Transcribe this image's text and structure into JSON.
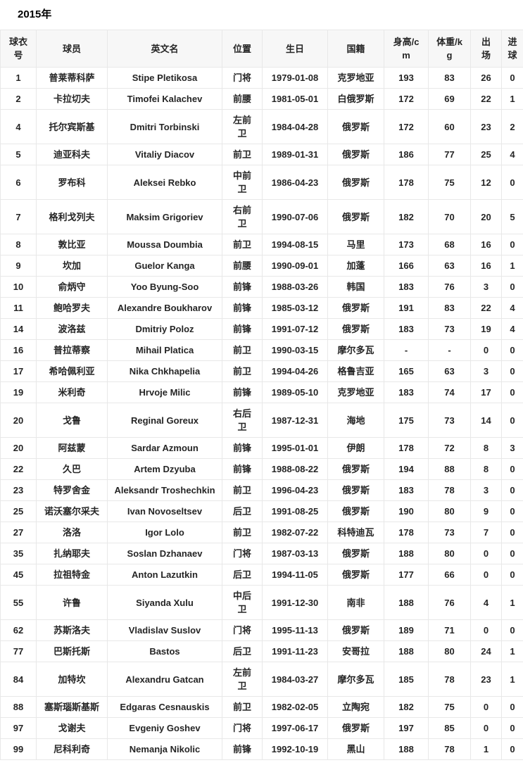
{
  "title": "2015年",
  "table": {
    "columns": [
      {
        "key": "number",
        "label": "球衣\n号"
      },
      {
        "key": "player",
        "label": "球员"
      },
      {
        "key": "en_name",
        "label": "英文名"
      },
      {
        "key": "position",
        "label": "位置"
      },
      {
        "key": "birthday",
        "label": "生日"
      },
      {
        "key": "nationality",
        "label": "国籍"
      },
      {
        "key": "height",
        "label": "身高/c\nm"
      },
      {
        "key": "weight",
        "label": "体重/k\ng"
      },
      {
        "key": "appearances",
        "label": "出\n场"
      },
      {
        "key": "goals",
        "label": "进\n球"
      }
    ],
    "rows": [
      [
        "1",
        "普莱蒂科萨",
        "Stipe Pletikosa",
        "门将",
        "1979-01-08",
        "克罗地亚",
        "193",
        "83",
        "26",
        "0"
      ],
      [
        "2",
        "卡拉切夫",
        "Timofei Kalachev",
        "前腰",
        "1981-05-01",
        "白俄罗斯",
        "172",
        "69",
        "22",
        "1"
      ],
      [
        "4",
        "托尔宾斯基",
        "Dmitri Torbinski",
        "左前\n卫",
        "1984-04-28",
        "俄罗斯",
        "172",
        "60",
        "23",
        "2"
      ],
      [
        "5",
        "迪亚科夫",
        "Vitaliy Diacov",
        "前卫",
        "1989-01-31",
        "俄罗斯",
        "186",
        "77",
        "25",
        "4"
      ],
      [
        "6",
        "罗布科",
        "Aleksei Rebko",
        "中前\n卫",
        "1986-04-23",
        "俄罗斯",
        "178",
        "75",
        "12",
        "0"
      ],
      [
        "7",
        "格利戈列夫",
        "Maksim Grigoriev",
        "右前\n卫",
        "1990-07-06",
        "俄罗斯",
        "182",
        "70",
        "20",
        "5"
      ],
      [
        "8",
        "敦比亚",
        "Moussa Doumbia",
        "前卫",
        "1994-08-15",
        "马里",
        "173",
        "68",
        "16",
        "0"
      ],
      [
        "9",
        "坎加",
        "Guelor Kanga",
        "前腰",
        "1990-09-01",
        "加蓬",
        "166",
        "63",
        "16",
        "1"
      ],
      [
        "10",
        "俞炳守",
        "Yoo Byung-Soo",
        "前锋",
        "1988-03-26",
        "韩国",
        "183",
        "76",
        "3",
        "0"
      ],
      [
        "11",
        "鲍哈罗夫",
        "Alexandre Boukharov",
        "前锋",
        "1985-03-12",
        "俄罗斯",
        "191",
        "83",
        "22",
        "4"
      ],
      [
        "14",
        "波洛兹",
        "Dmitriy Poloz",
        "前锋",
        "1991-07-12",
        "俄罗斯",
        "183",
        "73",
        "19",
        "4"
      ],
      [
        "16",
        "普拉蒂察",
        "Mihail Platica",
        "前卫",
        "1990-03-15",
        "摩尔多瓦",
        "-",
        "-",
        "0",
        "0"
      ],
      [
        "17",
        "希哈佩利亚",
        "Nika Chkhapelia",
        "前卫",
        "1994-04-26",
        "格鲁吉亚",
        "165",
        "63",
        "3",
        "0"
      ],
      [
        "19",
        "米利奇",
        "Hrvoje Milic",
        "前锋",
        "1989-05-10",
        "克罗地亚",
        "183",
        "74",
        "17",
        "0"
      ],
      [
        "20",
        "戈鲁",
        "Reginal Goreux",
        "右后\n卫",
        "1987-12-31",
        "海地",
        "175",
        "73",
        "14",
        "0"
      ],
      [
        "20",
        "阿兹蒙",
        "Sardar Azmoun",
        "前锋",
        "1995-01-01",
        "伊朗",
        "178",
        "72",
        "8",
        "3"
      ],
      [
        "22",
        "久巴",
        "Artem Dzyuba",
        "前锋",
        "1988-08-22",
        "俄罗斯",
        "194",
        "88",
        "8",
        "0"
      ],
      [
        "23",
        "特罗舍金",
        "Aleksandr Troshechkin",
        "前卫",
        "1996-04-23",
        "俄罗斯",
        "183",
        "78",
        "3",
        "0"
      ],
      [
        "25",
        "诺沃塞尔采夫",
        "Ivan Novoseltsev",
        "后卫",
        "1991-08-25",
        "俄罗斯",
        "190",
        "80",
        "9",
        "0"
      ],
      [
        "27",
        "洛洛",
        "Igor Lolo",
        "前卫",
        "1982-07-22",
        "科特迪瓦",
        "178",
        "73",
        "7",
        "0"
      ],
      [
        "35",
        "扎纳耶夫",
        "Soslan Dzhanaev",
        "门将",
        "1987-03-13",
        "俄罗斯",
        "188",
        "80",
        "0",
        "0"
      ],
      [
        "45",
        "拉祖特金",
        "Anton Lazutkin",
        "后卫",
        "1994-11-05",
        "俄罗斯",
        "177",
        "66",
        "0",
        "0"
      ],
      [
        "55",
        "许鲁",
        "Siyanda Xulu",
        "中后\n卫",
        "1991-12-30",
        "南非",
        "188",
        "76",
        "4",
        "1"
      ],
      [
        "62",
        "苏斯洛夫",
        "Vladislav Suslov",
        "门将",
        "1995-11-13",
        "俄罗斯",
        "189",
        "71",
        "0",
        "0"
      ],
      [
        "77",
        "巴斯托斯",
        "Bastos",
        "后卫",
        "1991-11-23",
        "安哥拉",
        "188",
        "80",
        "24",
        "1"
      ],
      [
        "84",
        "加特坎",
        "Alexandru Gatcan",
        "左前\n卫",
        "1984-03-27",
        "摩尔多瓦",
        "185",
        "78",
        "23",
        "1"
      ],
      [
        "88",
        "塞斯瑙斯基斯",
        "Edgaras Cesnauskis",
        "前卫",
        "1982-02-05",
        "立陶宛",
        "182",
        "75",
        "0",
        "0"
      ],
      [
        "97",
        "戈谢夫",
        "Evgeniy Goshev",
        "门将",
        "1997-06-17",
        "俄罗斯",
        "197",
        "85",
        "0",
        "0"
      ],
      [
        "99",
        "尼科利奇",
        "Nemanja Nikolic",
        "前锋",
        "1992-10-19",
        "黑山",
        "188",
        "78",
        "1",
        "0"
      ]
    ]
  }
}
